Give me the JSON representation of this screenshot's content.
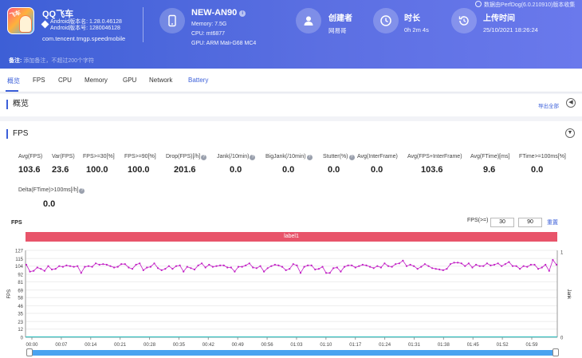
{
  "header": {
    "app_name": "QQ飞车",
    "android_version_name": "Android版本名: 1.28.0.46128",
    "android_version_code": "Android版本号: 1280046128",
    "package": "com.tencent.tmgp.speedmobile",
    "device_name": "NEW-AN90",
    "memory": "Memory: 7.5G",
    "cpu": "CPU: mt6877",
    "gpu": "GPU: ARM Mali-G68 MC4",
    "creator_label": "创建者",
    "creator_value": "网易哥",
    "duration_label": "时长",
    "duration_value": "0h 2m 4s",
    "upload_label": "上传时间",
    "upload_value": "25/10/2021 18:26:24",
    "version_link": "数据由PerfDog(6.0.210910)版本收集",
    "note_label": "备注:",
    "note_placeholder": "添加备注，不超过200个字符"
  },
  "tabs": [
    "概览",
    "FPS",
    "CPU",
    "Memory",
    "GPU",
    "Network",
    "Battery"
  ],
  "overview": {
    "title": "概览",
    "export": "导出全部"
  },
  "fps_panel": {
    "title": "FPS",
    "metrics": [
      {
        "label": "Avg(FPS)",
        "value": "103.6"
      },
      {
        "label": "Var(FPS)",
        "value": "23.6"
      },
      {
        "label": "FPS>=30[%]",
        "value": "100.0"
      },
      {
        "label": "FPS>=90[%]",
        "value": "100.0"
      },
      {
        "label": "Drop(FPS)[/h]",
        "value": "201.6"
      },
      {
        "label": "Jank(/10min)",
        "value": "0.0"
      },
      {
        "label": "BigJank(/10min)",
        "value": "0.0"
      },
      {
        "label": "Stutter(%)",
        "value": "0.0"
      },
      {
        "label": "Avg(InterFrame)",
        "value": "0.0"
      },
      {
        "label": "Avg(FPS+InterFrame)",
        "value": "103.6"
      },
      {
        "label": "Avg(FTime)[ms]",
        "value": "9.6"
      },
      {
        "label": "FTime>=100ms[%]",
        "value": "0.0"
      },
      {
        "label": "Delta(FTime)>100ms[/h]",
        "value": "0.0"
      }
    ],
    "chart_label": "FPS",
    "fps_filter_label": "FPS(>=)",
    "fps_min": "30",
    "fps_max": "90",
    "reset": "重置",
    "series_label": "label1"
  },
  "chart_data": {
    "type": "line",
    "ylabel": "FPS",
    "y2label": "Jank",
    "ylim": [
      0,
      127
    ],
    "yticks": [
      "127",
      "115",
      "104",
      "92",
      "81",
      "69",
      "58",
      "46",
      "35",
      "23",
      "12",
      "0"
    ],
    "y2ticks": [
      "1",
      "0"
    ],
    "xticks": [
      "00:00",
      "00:07",
      "00:14",
      "00:21",
      "00:28",
      "00:35",
      "00:42",
      "00:49",
      "00:56",
      "01:03",
      "01:10",
      "01:17",
      "01:24",
      "01:31",
      "01:38",
      "01:45",
      "01:52",
      "01:59"
    ],
    "series": [
      {
        "name": "FPS",
        "color": "#c21fc5",
        "values": [
          106,
          96,
          97,
          102,
          100,
          97,
          104,
          99,
          100,
          104,
          103,
          105,
          104,
          103,
          104,
          94,
          103,
          104,
          103,
          108,
          106,
          107,
          106,
          104,
          102,
          103,
          107,
          107,
          102,
          100,
          106,
          108,
          98,
          102,
          103,
          108,
          101,
          98,
          100,
          104,
          100,
          104,
          105,
          96,
          103,
          101,
          99,
          105,
          108,
          102,
          106,
          103,
          104,
          105,
          105,
          102,
          102,
          96,
          103,
          103,
          105,
          108,
          102,
          101,
          104,
          96,
          101,
          104,
          106,
          105,
          103,
          98,
          100,
          107,
          105,
          94,
          103,
          105,
          105,
          99,
          100,
          103,
          94,
          94,
          101,
          102,
          96,
          103,
          105,
          105,
          102,
          104,
          106,
          105,
          103,
          101,
          104,
          102,
          108,
          104,
          103,
          107,
          108,
          112,
          104,
          106,
          104,
          100,
          103,
          107,
          104,
          101,
          100,
          99,
          98,
          100,
          107,
          109,
          109,
          108,
          104,
          108,
          102,
          106,
          104,
          104,
          108,
          105,
          106,
          108,
          104,
          107,
          110,
          104,
          104,
          100,
          104,
          103,
          106,
          106,
          100,
          102,
          106,
          97,
          113,
          106
        ]
      },
      {
        "name": "Jank",
        "color": "#40c4c4",
        "values": [
          0
        ]
      }
    ]
  }
}
